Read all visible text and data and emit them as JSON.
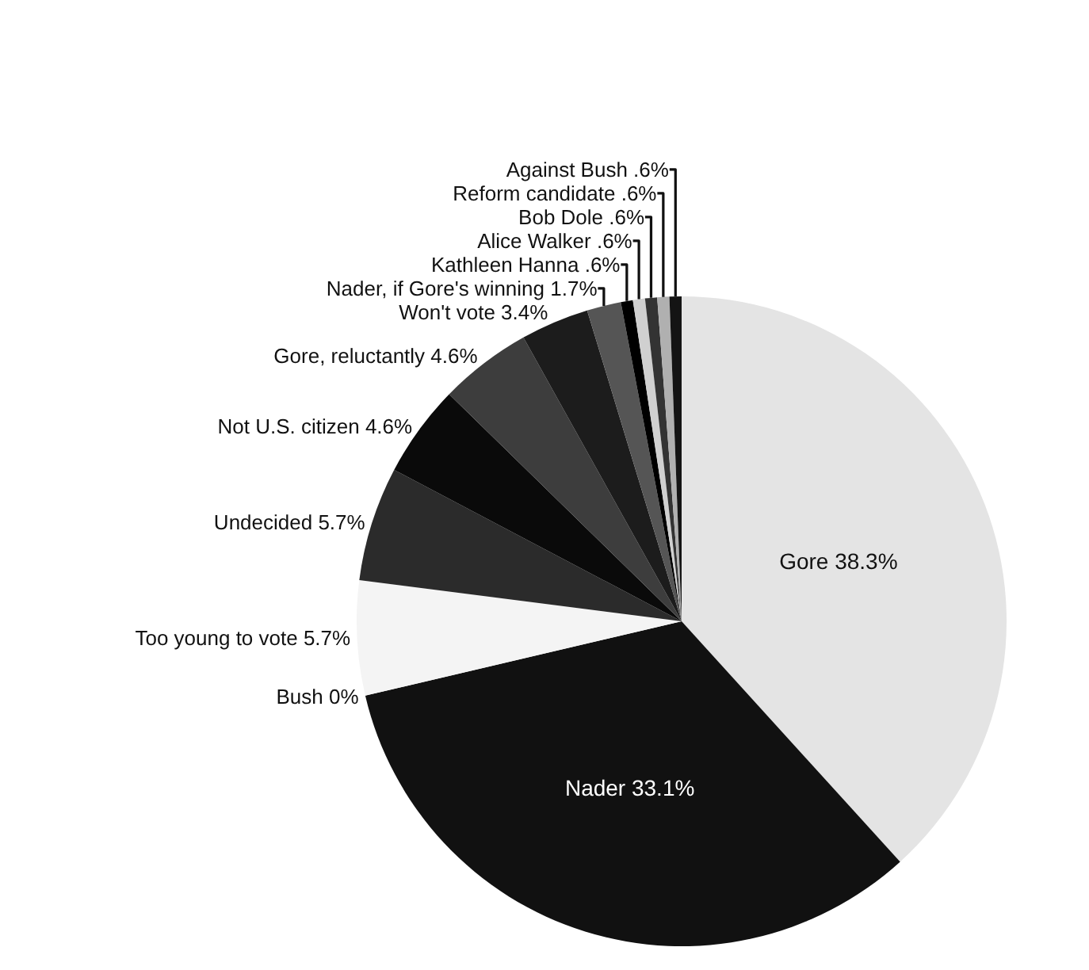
{
  "chart_data": {
    "type": "pie",
    "categories": [
      "Gore",
      "Nader",
      "Bush",
      "Too young to vote",
      "Undecided",
      "Not U.S. citizen",
      "Gore, reluctantly",
      "Won't vote",
      "Nader, if Gore's winning",
      "Kathleen Hanna",
      "Alice Walker",
      "Bob Dole",
      "Reform candidate",
      "Against Bush"
    ],
    "values": [
      38.3,
      33.1,
      0,
      5.7,
      5.7,
      4.6,
      4.6,
      3.4,
      1.7,
      0.6,
      0.6,
      0.6,
      0.6,
      0.6
    ],
    "value_labels": [
      "38.3%",
      "33.1%",
      "0%",
      "5.7%",
      "5.7%",
      "4.6%",
      "4.6%",
      "3.4%",
      "1.7%",
      ".6%",
      ".6%",
      ".6%",
      ".6%",
      ".6%"
    ],
    "colors": [
      "#e4e4e4",
      "#111111",
      "#111111",
      "#f4f4f4",
      "#2b2b2b",
      "#0a0a0a",
      "#3d3d3d",
      "#1c1c1c",
      "#555555",
      "#000000",
      "#d0d0d0",
      "#333333",
      "#b0b0b0",
      "#141414"
    ],
    "legend": false
  }
}
